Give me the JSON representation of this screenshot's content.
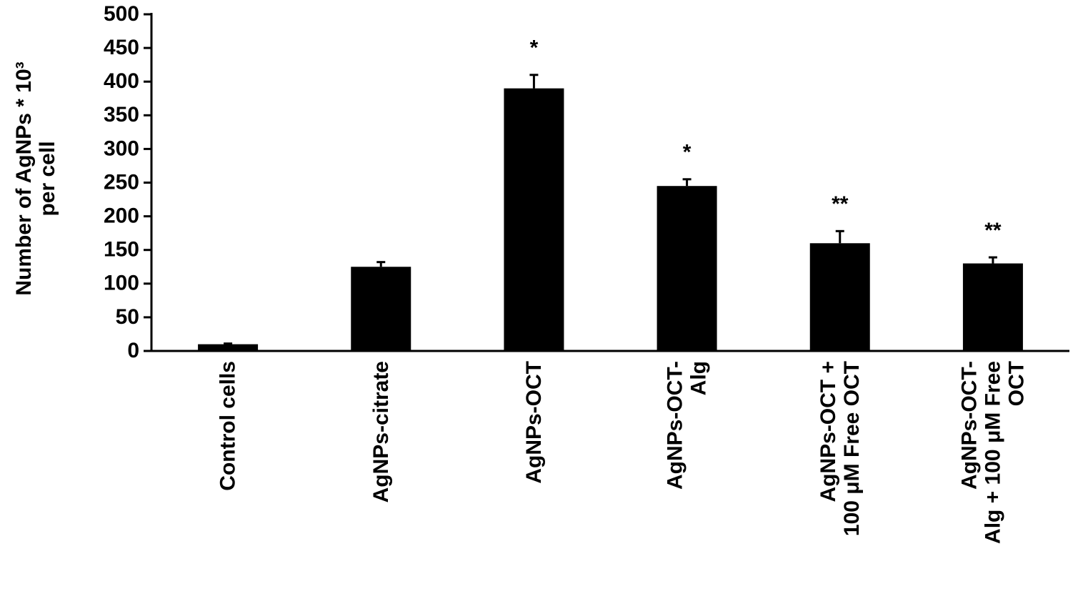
{
  "chart_data": {
    "type": "bar",
    "y_label": "Number of AgNPs * 10³\nper cell",
    "categories": [
      "Control cells",
      "AgNPs-citrate",
      "AgNPs-OCT",
      "AgNPs-OCT-\nAlg",
      "AgNPs-OCT +\n100 μM Free OCT",
      "AgNPs-OCT-\nAlg + 100 μM Free\nOCT"
    ],
    "values": [
      10,
      125,
      390,
      245,
      160,
      130
    ],
    "errors": [
      1,
      7,
      20,
      10,
      18,
      9
    ],
    "significance": [
      null,
      null,
      "*",
      "*",
      "**",
      "**"
    ],
    "color": "#000000",
    "ylim": [
      0,
      500
    ],
    "yticks": [
      0,
      50,
      100,
      150,
      200,
      250,
      300,
      350,
      400,
      450,
      500
    ],
    "grid": false
  }
}
